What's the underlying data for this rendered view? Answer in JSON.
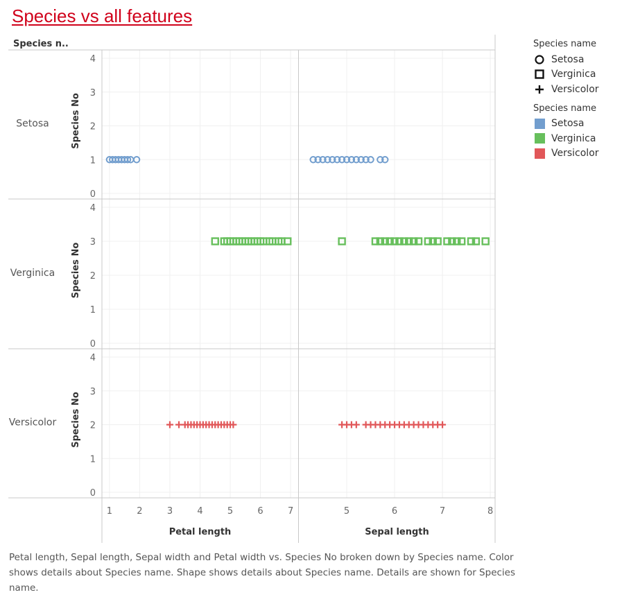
{
  "title": "Species vs all features",
  "header": {
    "row_dimension_label": "Species n.."
  },
  "caption": "Petal length, Sepal length, Sepal width and Petal width vs. Species No broken down by Species name.  Color shows details about Species name.  Shape shows details about Species name.  Details are shown for Species name.",
  "legends": {
    "shape": {
      "title": "Species name",
      "items": [
        {
          "label": "Setosa",
          "shape": "circle-icon"
        },
        {
          "label": "Verginica",
          "shape": "square-icon"
        },
        {
          "label": "Versicolor",
          "shape": "plus-icon"
        }
      ]
    },
    "color": {
      "title": "Species name",
      "items": [
        {
          "label": "Setosa",
          "color": "#729ece"
        },
        {
          "label": "Verginica",
          "color": "#67bf5c"
        },
        {
          "label": "Versicolor",
          "color": "#e15759"
        }
      ]
    }
  },
  "chart_data": {
    "type": "scatter",
    "title": "Species vs all features",
    "rows": [
      "Setosa",
      "Verginica",
      "Versicolor"
    ],
    "ylabel": "Species No",
    "ylim": [
      0,
      4
    ],
    "y_ticks": [
      0,
      1,
      2,
      3,
      4
    ],
    "grid": true,
    "legend_position": "right",
    "columns": [
      {
        "name": "Petal length",
        "xlabel": "Petal length",
        "xlim": [
          0.75,
          7.25
        ],
        "x_ticks": [
          1,
          2,
          3,
          4,
          5,
          6,
          7
        ]
      },
      {
        "name": "Sepal length",
        "xlabel": "Sepal length",
        "xlim": [
          4.0,
          8.1
        ],
        "x_ticks": [
          5,
          6,
          7,
          8
        ]
      }
    ],
    "series": [
      {
        "name": "Setosa",
        "color": "#729ece",
        "shape": "circle",
        "y": 1,
        "petal_length": [
          1.0,
          1.1,
          1.2,
          1.3,
          1.4,
          1.5,
          1.6,
          1.7,
          1.9
        ],
        "sepal_length": [
          4.3,
          4.4,
          4.5,
          4.6,
          4.7,
          4.8,
          4.9,
          5.0,
          5.1,
          5.2,
          5.3,
          5.4,
          5.5,
          5.7,
          5.8
        ]
      },
      {
        "name": "Verginica",
        "color": "#67bf5c",
        "shape": "square",
        "y": 3,
        "petal_length": [
          4.5,
          4.8,
          4.9,
          5.0,
          5.1,
          5.2,
          5.3,
          5.4,
          5.5,
          5.6,
          5.7,
          5.8,
          5.9,
          6.0,
          6.1,
          6.3,
          6.4,
          6.6,
          6.7,
          6.9
        ],
        "sepal_length": [
          4.9,
          5.6,
          5.7,
          5.8,
          5.9,
          6.0,
          6.1,
          6.2,
          6.3,
          6.4,
          6.5,
          6.7,
          6.8,
          6.9,
          7.1,
          7.2,
          7.3,
          7.4,
          7.6,
          7.7,
          7.9
        ]
      },
      {
        "name": "Versicolor",
        "color": "#e15759",
        "shape": "plus",
        "y": 2,
        "petal_length": [
          3.0,
          3.3,
          3.5,
          3.6,
          3.7,
          3.8,
          3.9,
          4.0,
          4.1,
          4.2,
          4.3,
          4.4,
          4.5,
          4.6,
          4.7,
          4.8,
          4.9,
          5.0,
          5.1
        ],
        "sepal_length": [
          4.9,
          5.0,
          5.1,
          5.2,
          5.4,
          5.5,
          5.6,
          5.7,
          5.8,
          5.9,
          6.0,
          6.1,
          6.2,
          6.3,
          6.4,
          6.5,
          6.6,
          6.7,
          6.8,
          6.9,
          7.0
        ]
      }
    ]
  }
}
